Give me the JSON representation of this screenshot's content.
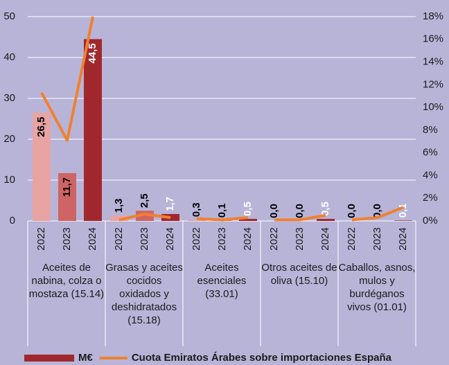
{
  "chart_data": {
    "type": "bar",
    "groups": [
      {
        "name": "Aceites de nabina, colza o mostaza (15.14)",
        "categories": [
          "2022",
          "2023",
          "2024"
        ]
      },
      {
        "name": "Grasas y aceites cocidos oxidados y deshidratados (15.18)",
        "categories": [
          "2022",
          "2023",
          "2024"
        ]
      },
      {
        "name": "Aceites esenciales (33.01)",
        "categories": [
          "2022",
          "2023",
          "2024"
        ]
      },
      {
        "name": "Otros aceites de oliva (15.10)",
        "categories": [
          "2022",
          "2023",
          "2024"
        ]
      },
      {
        "name": "Caballos, asnos, mulos y burdéganos vivos (01.01)",
        "categories": [
          "2022",
          "2023",
          "2024"
        ]
      }
    ],
    "series": [
      {
        "name": "M€",
        "type": "bar",
        "color": "#a0282c",
        "colors": [
          "#e8a3a3",
          "#cf6464",
          "#a0282c"
        ],
        "label_colors": [
          "#000000",
          "#000000",
          "#ffffff"
        ],
        "values": [
          26.5,
          11.7,
          44.5,
          1.3,
          2.5,
          1.7,
          0.3,
          0.1,
          0.5,
          0.0,
          0.0,
          0.5,
          0.0,
          0.0,
          0.1
        ],
        "value_labels": [
          "26,5",
          "11,7",
          "44,5",
          "1,3",
          "2,5",
          "1,7",
          "0,3",
          "0,1",
          "0,5",
          "0,0",
          "0,0",
          "0,5",
          "0,0",
          "0,0",
          "0,1"
        ]
      },
      {
        "name": "Cuota Emiratos Árabes sobre importaciones España",
        "type": "line",
        "axis": "y2",
        "color": "#f08030",
        "values": [
          11.3,
          7.1,
          18.0,
          0.1,
          0.6,
          0.3,
          0.2,
          0.1,
          0.3,
          0.1,
          0.1,
          0.5,
          0.1,
          0.3,
          1.2
        ]
      }
    ],
    "ylim": [
      0,
      50
    ],
    "yticks": [
      0,
      10,
      20,
      30,
      40,
      50
    ],
    "y2lim": [
      0,
      18
    ],
    "y2ticks": [
      {
        "value": 0,
        "label": "0%"
      },
      {
        "value": 2,
        "label": "2%"
      },
      {
        "value": 4,
        "label": "4%"
      },
      {
        "value": 6,
        "label": "6%"
      },
      {
        "value": 8,
        "label": "8%"
      },
      {
        "value": 10,
        "label": "10%"
      },
      {
        "value": 12,
        "label": "12%"
      },
      {
        "value": 14,
        "label": "14%"
      },
      {
        "value": 16,
        "label": "16%"
      },
      {
        "value": 18,
        "label": "18%"
      }
    ],
    "grid": true,
    "legend": "bottom"
  }
}
